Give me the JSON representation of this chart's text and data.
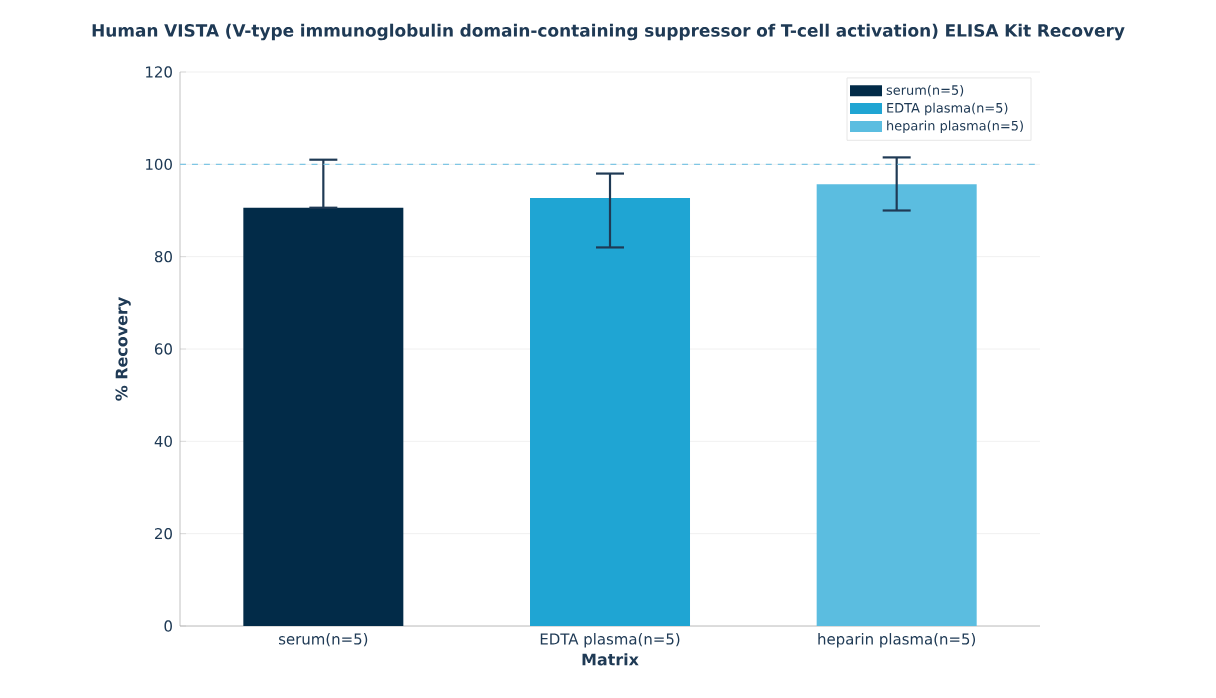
{
  "chart_data": {
    "type": "bar",
    "title": "Human VISTA (V-type immunoglobulin domain-containing suppressor of T-cell activation) ELISA Kit Recovery",
    "xlabel": "Matrix",
    "ylabel": "% Recovery",
    "categories": [
      "serum(n=5)",
      "EDTA plasma(n=5)",
      "heparin plasma(n=5)"
    ],
    "series": [
      {
        "name": "serum(n=5)",
        "color": "#022b48",
        "values": [
          90.6,
          null,
          null
        ],
        "errors": [
          [
            90.6,
            101
          ],
          null,
          null
        ]
      },
      {
        "name": "EDTA plasma(n=5)",
        "color": "#1fa5d3",
        "values": [
          null,
          92.7,
          null
        ],
        "errors": [
          null,
          [
            82,
            98
          ],
          null
        ]
      },
      {
        "name": "heparin plasma(n=5)",
        "color": "#5bbde0",
        "values": [
          null,
          null,
          95.7
        ],
        "errors": [
          null,
          null,
          [
            90,
            101.5
          ]
        ]
      }
    ],
    "ylim": [
      0,
      120
    ],
    "yticks": [
      0,
      20,
      40,
      60,
      80,
      100,
      120
    ],
    "grid": "y",
    "legend": "top right",
    "ref_lines": [
      {
        "axis": "y",
        "value": 100,
        "color": "#7fc6e4",
        "line_style": "dashed"
      }
    ]
  }
}
